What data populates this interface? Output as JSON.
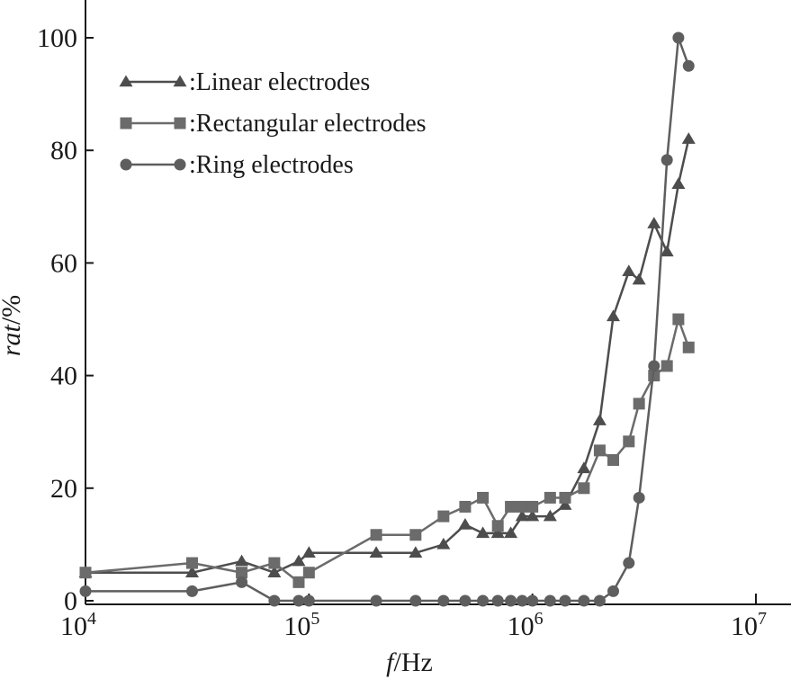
{
  "chart_data": {
    "type": "line",
    "xscale": "log",
    "xlim": [
      10000,
      20000000
    ],
    "ylim": [
      0,
      105
    ],
    "xlabel": {
      "italic": "f",
      "plain": "/Hz"
    },
    "ylabel": {
      "italic": "rat",
      "plain": "/%"
    },
    "xticks": [
      {
        "value": 10000,
        "base": "10",
        "exp": "4"
      },
      {
        "value": 100000,
        "base": "10",
        "exp": "5"
      },
      {
        "value": 1000000,
        "base": "10",
        "exp": "6"
      },
      {
        "value": 10000000,
        "base": "10",
        "exp": "7"
      }
    ],
    "yticks": [
      {
        "value": 0,
        "label": "0"
      },
      {
        "value": 20,
        "label": "20"
      },
      {
        "value": 40,
        "label": "40"
      },
      {
        "value": 60,
        "label": "60"
      },
      {
        "value": 80,
        "label": "80"
      },
      {
        "value": 100,
        "label": "100"
      }
    ],
    "legend_position": "top-left",
    "series": [
      {
        "name": ":Linear electrodes",
        "marker": "triangle",
        "color": "#4d4d4d",
        "x": [
          10000,
          30000,
          50000,
          70000,
          90000,
          100000,
          200000,
          300000,
          400000,
          500000,
          600000,
          700000,
          800000,
          900000,
          1000000,
          1200000,
          1400000,
          1700000,
          2000000,
          2300000,
          2700000,
          3000000,
          3500000,
          4000000,
          4500000,
          5000000
        ],
        "y": [
          5,
          5,
          7,
          5,
          7,
          8.5,
          8.5,
          8.5,
          10,
          13.5,
          12,
          12,
          12,
          15,
          15,
          15,
          17,
          23.5,
          32,
          50.5,
          58.5,
          57,
          67,
          62,
          74,
          82
        ]
      },
      {
        "name": ":Rectangular electrodes",
        "marker": "square",
        "color": "#6b6b6b",
        "x": [
          10000,
          30000,
          50000,
          70000,
          90000,
          100000,
          200000,
          300000,
          400000,
          500000,
          600000,
          700000,
          800000,
          900000,
          1000000,
          1200000,
          1400000,
          1700000,
          2000000,
          2300000,
          2700000,
          3000000,
          3500000,
          4000000,
          4500000,
          5000000
        ],
        "y": [
          5,
          6.7,
          5,
          6.7,
          3.3,
          5,
          11.7,
          11.7,
          15,
          16.7,
          18.3,
          13.3,
          16.7,
          16.7,
          16.7,
          18.3,
          18.3,
          20,
          26.7,
          25,
          28.3,
          35,
          40,
          41.7,
          50,
          45
        ]
      },
      {
        "name": ":Ring electrodes",
        "marker": "circle",
        "color": "#5e5e5e",
        "x": [
          10000,
          30000,
          50000,
          70000,
          90000,
          100000,
          200000,
          300000,
          400000,
          500000,
          600000,
          700000,
          800000,
          900000,
          1000000,
          1200000,
          1400000,
          1700000,
          2000000,
          2300000,
          2700000,
          3000000,
          3500000,
          4000000,
          4500000,
          5000000
        ],
        "y": [
          1.7,
          1.7,
          3.3,
          0,
          0,
          0,
          0,
          0,
          0,
          0,
          0,
          0,
          0,
          0,
          0,
          0,
          0,
          0,
          0,
          1.7,
          6.7,
          18.3,
          41.7,
          78.3,
          100,
          95
        ]
      }
    ]
  }
}
